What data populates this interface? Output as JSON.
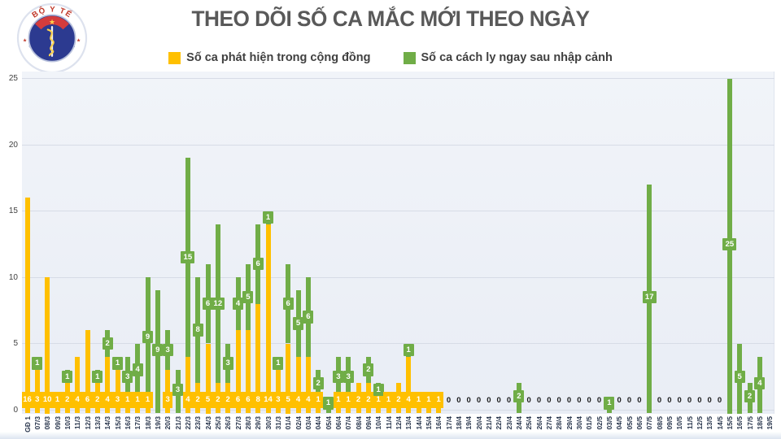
{
  "title": "THEO DÕI SỐ CA MẮC MỚI THEO NGÀY",
  "logo": {
    "top_text": "BỘ Y TẾ",
    "bottom_text": "MINISTRY OF HEALTH",
    "star": "★"
  },
  "legend": [
    {
      "label": "Số ca phát hiện trong cộng đồng",
      "color": "#FFC000"
    },
    {
      "label": "Số ca cách ly ngay sau nhập cảnh",
      "color": "#70AD47"
    }
  ],
  "colors": {
    "community": "#FFC000",
    "imported": "#70AD47",
    "title": "#595959",
    "plot_background": "#edf1f7",
    "gridline": "#d7dce6"
  },
  "chart_data": {
    "type": "bar",
    "stacked": true,
    "title": "THEO DÕI SỐ CA MẮC MỚI THEO NGÀY",
    "xlabel": "",
    "ylabel": "",
    "ylim": [
      0,
      25
    ],
    "yticks": [
      0,
      5,
      10,
      15,
      20,
      25
    ],
    "grid": true,
    "legend_position": "top",
    "categories": [
      "GĐ 1",
      "07/3",
      "08/3",
      "09/3",
      "10/3",
      "11/3",
      "12/3",
      "13/3",
      "14/3",
      "15/3",
      "16/3",
      "17/3",
      "18/3",
      "19/3",
      "20/3",
      "21/3",
      "22/3",
      "23/3",
      "24/3",
      "25/3",
      "26/3",
      "27/3",
      "28/3",
      "29/3",
      "30/3",
      "31/3",
      "01/4",
      "02/4",
      "03/4",
      "04/4",
      "05/4",
      "06/4",
      "07/4",
      "08/4",
      "09/4",
      "10/4",
      "11/4",
      "12/4",
      "13/4",
      "14/4",
      "15/4",
      "16/4",
      "17/4",
      "18/4",
      "19/4",
      "20/4",
      "21/4",
      "22/4",
      "23/4",
      "24/4",
      "25/4",
      "26/4",
      "27/4",
      "28/4",
      "29/4",
      "30/4",
      "01/5",
      "02/5",
      "03/5",
      "04/5",
      "05/5",
      "06/5",
      "07/5",
      "08/5",
      "09/5",
      "10/5",
      "11/5",
      "12/5",
      "13/5",
      "14/5",
      "15/5",
      "16/5",
      "17/5",
      "18/5",
      "19/5"
    ],
    "series": [
      {
        "name": "Số ca phát hiện trong cộng đồng",
        "color": "#FFC000",
        "values": [
          16,
          3,
          10,
          1,
          2,
          4,
          6,
          2,
          4,
          3,
          1,
          1,
          1,
          0,
          3,
          0,
          4,
          2,
          5,
          2,
          2,
          6,
          6,
          8,
          14,
          3,
          5,
          4,
          4,
          1,
          0,
          1,
          1,
          2,
          2,
          1,
          1,
          2,
          4,
          1,
          1,
          1,
          0,
          0,
          0,
          0,
          0,
          0,
          0,
          0,
          0,
          0,
          0,
          0,
          0,
          0,
          0,
          0,
          0,
          0,
          0,
          0,
          0,
          0,
          0,
          0,
          0,
          0,
          0,
          0,
          0,
          0,
          0,
          0,
          0
        ]
      },
      {
        "name": "Số ca cách ly ngay sau nhập cảnh",
        "color": "#70AD47",
        "values": [
          0,
          1,
          0,
          0,
          1,
          0,
          0,
          1,
          2,
          1,
          3,
          4,
          9,
          9,
          3,
          3,
          15,
          8,
          6,
          12,
          3,
          4,
          5,
          6,
          1,
          1,
          6,
          5,
          6,
          2,
          1,
          3,
          3,
          0,
          2,
          1,
          0,
          0,
          1,
          0,
          0,
          0,
          0,
          0,
          0,
          0,
          0,
          0,
          0,
          2,
          0,
          0,
          0,
          0,
          0,
          0,
          0,
          0,
          1,
          0,
          0,
          0,
          17,
          0,
          0,
          0,
          0,
          0,
          0,
          0,
          25,
          5,
          2,
          4,
          0
        ]
      }
    ],
    "zero_labels_hidden": [
      "19/5"
    ]
  }
}
